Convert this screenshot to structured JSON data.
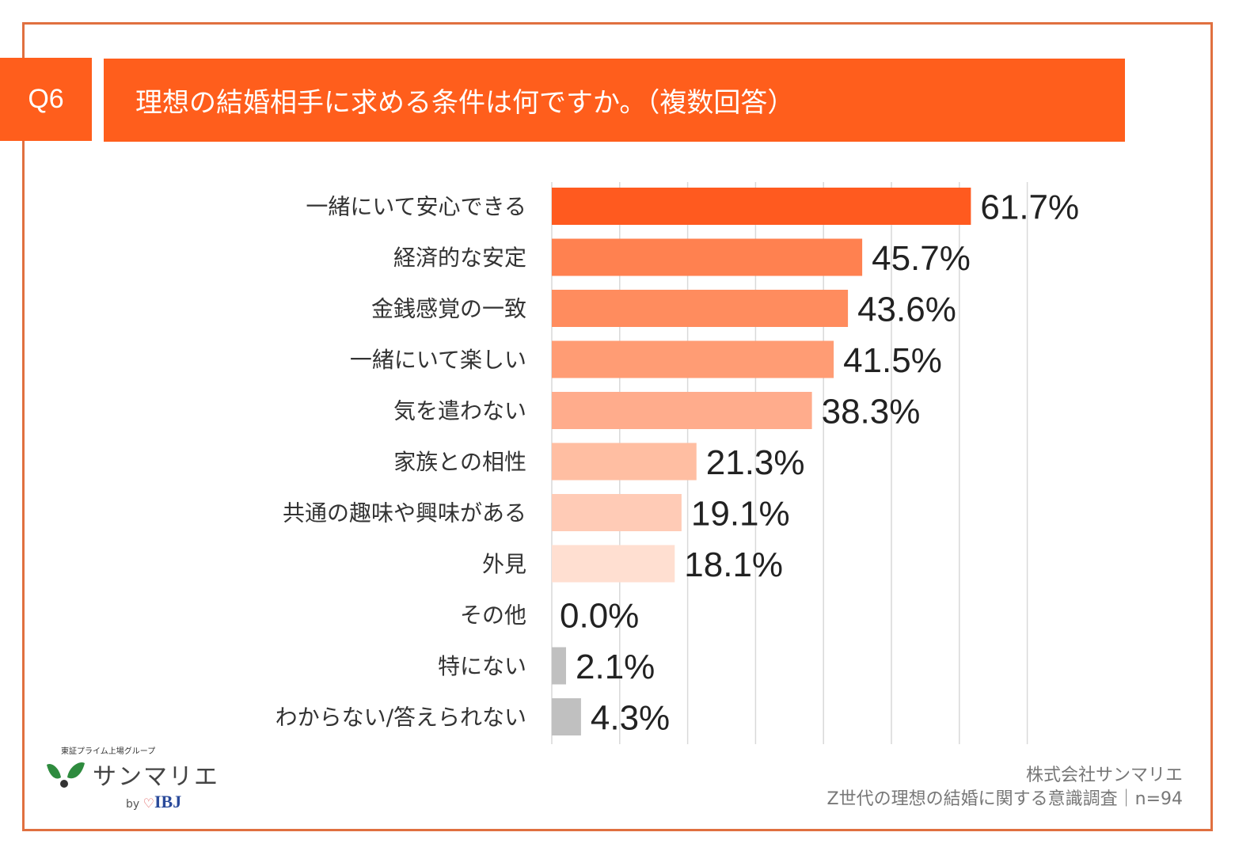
{
  "header": {
    "question_number": "Q6",
    "title": "理想の結婚相手に求める条件は何ですか。（複数回答）"
  },
  "chart_data": {
    "type": "bar",
    "orientation": "horizontal",
    "title": "理想の結婚相手に求める条件は何ですか。（複数回答）",
    "xlabel": "",
    "ylabel": "",
    "xlim": [
      0,
      70
    ],
    "grid": true,
    "gridline_interval": 10,
    "categories": [
      "一緒にいて安心できる",
      "経済的な安定",
      "金銭感覚の一致",
      "一緒にいて楽しい",
      "気を遣わない",
      "家族との相性",
      "共通の趣味や興味がある",
      "外見",
      "その他",
      "特にない",
      "わからない/答えられない"
    ],
    "values": [
      61.7,
      45.7,
      43.6,
      41.5,
      38.3,
      21.3,
      19.1,
      18.1,
      0.0,
      2.1,
      4.3
    ],
    "value_labels": [
      "61.7%",
      "45.7%",
      "43.6%",
      "41.5%",
      "38.3%",
      "21.3%",
      "19.1%",
      "18.1%",
      "0.0%",
      "2.1%",
      "4.3%"
    ],
    "bar_colors": [
      "#ff5a1f",
      "#ff8150",
      "#ff8c5e",
      "#ff9c74",
      "#ffac8c",
      "#ffbea2",
      "#ffcbb6",
      "#ffdfd1",
      "#c0c0c0",
      "#c0c0c0",
      "#c0c0c0"
    ],
    "legend": "none"
  },
  "logo": {
    "tagline": "東証プライム上場グループ",
    "name": "サンマリエ",
    "by": "by",
    "partner": "IBJ"
  },
  "source": {
    "company": "株式会社サンマリエ",
    "survey": "Z世代の理想の結婚に関する意識調査｜n=94"
  },
  "colors": {
    "accent": "#ff5e1c",
    "frame": "#e07040",
    "gray_bar": "#c0c0c0",
    "gridline": "#d9d9d9"
  }
}
